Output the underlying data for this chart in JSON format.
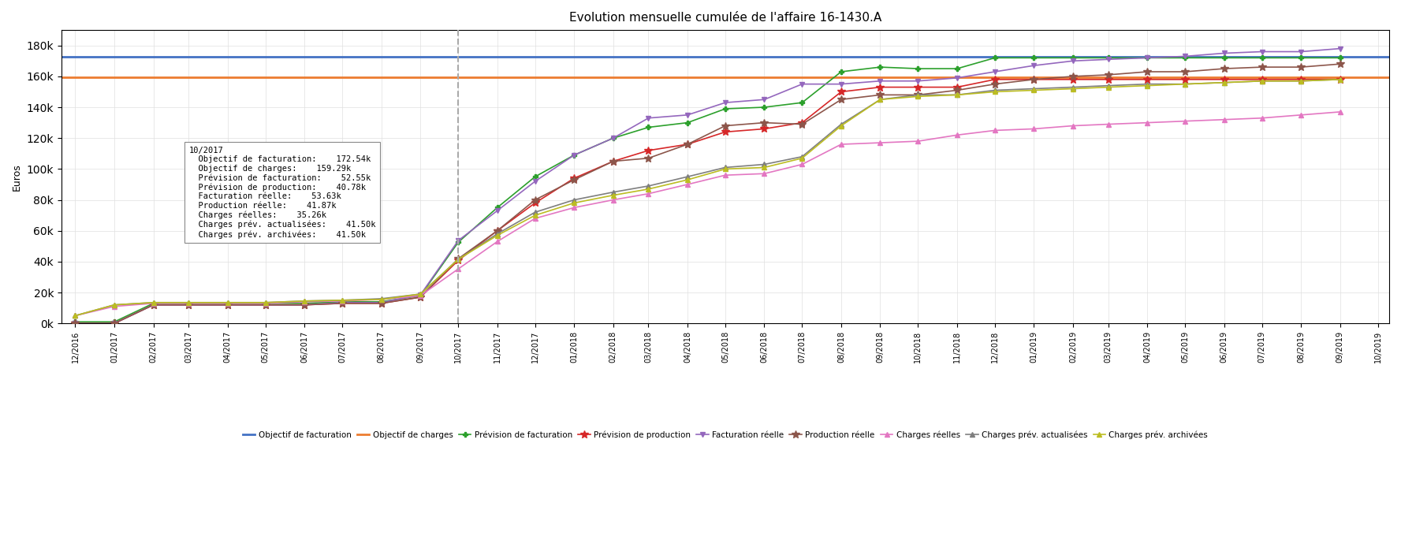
{
  "title": "Evolution mensuelle cumulée de l'affaire 16-1430.A",
  "ylabel": "Euros",
  "objectif_facturation": 172540,
  "objectif_charges": 159290,
  "vline_x": "10/2017",
  "tooltip_date": "10/2017",
  "tooltip_items": [
    {
      "label": "Objectif de facturation:",
      "value": "172.54k",
      "color": "#4472c4",
      "marker": "square"
    },
    {
      "label": "Objectif de charges:",
      "value": "159.29k",
      "color": "#ed7d31",
      "marker": "square"
    },
    {
      "label": "Prévision de facturation:",
      "value": "52.55k",
      "color": "#2ca02c",
      "marker": "plus"
    },
    {
      "label": "Prévision de production:",
      "value": "40.78k",
      "color": "#d62728",
      "marker": "star"
    },
    {
      "label": "Facturation réelle:",
      "value": "53.63k",
      "color": "#9467bd",
      "marker": "tri"
    },
    {
      "label": "Production réelle:",
      "value": "41.87k",
      "color": "#8c564b",
      "marker": "star"
    },
    {
      "label": "Charges réelles:",
      "value": "35.26k",
      "color": "#e377c2",
      "marker": "tri"
    },
    {
      "label": "Charges prév. actualisées:",
      "value": "41.50k",
      "color": "#7f7f7f",
      "marker": "tri"
    },
    {
      "label": "Charges prév. archivées:",
      "value": "41.50k",
      "color": "#bcbd22",
      "marker": "tri"
    }
  ],
  "series": {
    "prev_facturation": {
      "color": "#2ca02c",
      "marker": "P",
      "ms": 5,
      "label": "Prévision de facturation",
      "dates": [
        "12/2016",
        "01/2017",
        "02/2017",
        "03/2017",
        "04/2017",
        "05/2017",
        "06/2017",
        "07/2017",
        "08/2017",
        "09/2017",
        "10/2017",
        "11/2017",
        "12/2017",
        "01/2018",
        "02/2018",
        "03/2018",
        "04/2018",
        "05/2018",
        "06/2018",
        "07/2018",
        "08/2018",
        "09/2018",
        "10/2018",
        "11/2018",
        "12/2018",
        "01/2019",
        "02/2019",
        "03/2019",
        "04/2019",
        "05/2019",
        "06/2019",
        "07/2019",
        "08/2019",
        "09/2019"
      ],
      "values": [
        1000,
        1000,
        13000,
        13000,
        13000,
        13000,
        13000,
        14000,
        14000,
        18000,
        52550,
        75000,
        95000,
        109000,
        120000,
        127000,
        130000,
        139000,
        140000,
        143000,
        163000,
        166000,
        165000,
        165000,
        172000,
        172000,
        172000,
        172000,
        172000,
        172000,
        172000,
        172000,
        172000,
        172000
      ]
    },
    "prev_production": {
      "color": "#d62728",
      "marker": "*",
      "ms": 7,
      "label": "Prévision de production",
      "dates": [
        "12/2016",
        "01/2017",
        "02/2017",
        "03/2017",
        "04/2017",
        "05/2017",
        "06/2017",
        "07/2017",
        "08/2017",
        "09/2017",
        "10/2017",
        "11/2017",
        "12/2017",
        "01/2018",
        "02/2018",
        "03/2018",
        "04/2018",
        "05/2018",
        "06/2018",
        "07/2018",
        "08/2018",
        "09/2018",
        "10/2018",
        "11/2018",
        "12/2018",
        "01/2019",
        "02/2019",
        "03/2019",
        "04/2019",
        "05/2019",
        "06/2019",
        "07/2019",
        "08/2019",
        "09/2019"
      ],
      "values": [
        0,
        0,
        12000,
        12000,
        12000,
        12000,
        12000,
        13000,
        13000,
        17000,
        40780,
        60000,
        78000,
        94000,
        105000,
        112000,
        116000,
        124000,
        126000,
        130000,
        150000,
        153000,
        153000,
        153000,
        158000,
        158000,
        158000,
        158000,
        158000,
        158000,
        158000,
        158000,
        158000,
        158000
      ]
    },
    "facturation_reelle": {
      "color": "#9467bd",
      "marker": "v",
      "ms": 5,
      "label": "Facturation réelle",
      "dates": [
        "12/2016",
        "01/2017",
        "02/2017",
        "03/2017",
        "04/2017",
        "05/2017",
        "06/2017",
        "07/2017",
        "08/2017",
        "09/2017",
        "10/2017",
        "11/2017",
        "12/2017",
        "01/2018",
        "02/2018",
        "03/2018",
        "04/2018",
        "05/2018",
        "06/2018",
        "07/2018",
        "08/2018",
        "09/2018",
        "10/2018",
        "11/2018",
        "12/2018",
        "01/2019",
        "02/2019",
        "03/2019",
        "04/2019",
        "05/2019",
        "06/2019",
        "07/2019",
        "08/2019",
        "09/2019"
      ],
      "values": [
        0,
        0,
        12000,
        12000,
        12000,
        12000,
        12000,
        13500,
        13500,
        18500,
        53630,
        73000,
        92000,
        109000,
        120000,
        133000,
        135000,
        143000,
        145000,
        155000,
        155000,
        157000,
        157000,
        159000,
        163000,
        167000,
        170000,
        171000,
        172000,
        173000,
        175000,
        176000,
        176000,
        178000
      ]
    },
    "production_reelle": {
      "color": "#8c564b",
      "marker": "*",
      "ms": 7,
      "label": "Production réelle",
      "dates": [
        "12/2016",
        "01/2017",
        "02/2017",
        "03/2017",
        "04/2017",
        "05/2017",
        "06/2017",
        "07/2017",
        "08/2017",
        "09/2017",
        "10/2017",
        "11/2017",
        "12/2017",
        "01/2018",
        "02/2018",
        "03/2018",
        "04/2018",
        "05/2018",
        "06/2018",
        "07/2018",
        "08/2018",
        "09/2018",
        "10/2018",
        "11/2018",
        "12/2018",
        "01/2019",
        "02/2019",
        "03/2019",
        "04/2019",
        "05/2019",
        "06/2019",
        "07/2019",
        "08/2019",
        "09/2019"
      ],
      "values": [
        0,
        0,
        12000,
        12000,
        12000,
        12000,
        12000,
        13000,
        13000,
        17000,
        41870,
        60000,
        80000,
        93000,
        105000,
        107000,
        116000,
        128000,
        130000,
        129000,
        145000,
        148000,
        148000,
        151000,
        155000,
        158000,
        160000,
        161000,
        163000,
        163000,
        165000,
        166000,
        166000,
        168000
      ]
    },
    "charges_reelles": {
      "color": "#e377c2",
      "marker": "^",
      "ms": 5,
      "label": "Charges réelles",
      "dates": [
        "12/2016",
        "01/2017",
        "02/2017",
        "03/2017",
        "04/2017",
        "05/2017",
        "06/2017",
        "07/2017",
        "08/2017",
        "09/2017",
        "10/2017",
        "11/2017",
        "12/2017",
        "01/2018",
        "02/2018",
        "03/2018",
        "04/2018",
        "05/2018",
        "06/2018",
        "07/2018",
        "08/2018",
        "09/2018",
        "10/2018",
        "11/2018",
        "12/2018",
        "01/2019",
        "02/2019",
        "03/2019",
        "04/2019",
        "05/2019",
        "06/2019",
        "07/2019",
        "08/2019",
        "09/2019"
      ],
      "values": [
        5000,
        11000,
        13000,
        13000,
        13000,
        13000,
        14000,
        14500,
        15500,
        18000,
        35260,
        53000,
        68000,
        75000,
        80000,
        84000,
        90000,
        96000,
        97000,
        103000,
        116000,
        117000,
        118000,
        122000,
        125000,
        126000,
        128000,
        129000,
        130000,
        131000,
        132000,
        133000,
        135000,
        137000
      ]
    },
    "charges_prev_act": {
      "color": "#7f7f7f",
      "marker": "^",
      "ms": 5,
      "label": "Charges prév. actualisées",
      "dates": [
        "12/2016",
        "01/2017",
        "02/2017",
        "03/2017",
        "04/2017",
        "05/2017",
        "06/2017",
        "07/2017",
        "08/2017",
        "09/2017",
        "10/2017",
        "11/2017",
        "12/2017",
        "01/2018",
        "02/2018",
        "03/2018",
        "04/2018",
        "05/2018",
        "06/2018",
        "07/2018",
        "08/2018",
        "09/2018",
        "10/2018",
        "11/2018",
        "12/2018",
        "01/2019",
        "02/2019",
        "03/2019",
        "04/2019",
        "05/2019",
        "06/2019",
        "07/2019",
        "08/2019",
        "09/2019"
      ],
      "values": [
        5000,
        12000,
        13500,
        13500,
        13500,
        13500,
        14500,
        15000,
        16000,
        19000,
        41500,
        58000,
        72000,
        80000,
        85000,
        89000,
        95000,
        101000,
        103000,
        108000,
        129000,
        145000,
        148000,
        148000,
        151000,
        152000,
        153000,
        154000,
        155000,
        155000,
        156000,
        157000,
        157000,
        158000
      ]
    },
    "charges_prev_arch": {
      "color": "#bcbd22",
      "marker": "^",
      "ms": 5,
      "label": "Charges prév. archivées",
      "dates": [
        "12/2016",
        "01/2017",
        "02/2017",
        "03/2017",
        "04/2017",
        "05/2017",
        "06/2017",
        "07/2017",
        "08/2017",
        "09/2017",
        "10/2017",
        "11/2017",
        "12/2017",
        "01/2018",
        "02/2018",
        "03/2018",
        "04/2018",
        "05/2018",
        "06/2018",
        "07/2018",
        "08/2018",
        "09/2018",
        "10/2018",
        "11/2018",
        "12/2018",
        "01/2019",
        "02/2019",
        "03/2019",
        "04/2019",
        "05/2019",
        "06/2019",
        "07/2019",
        "08/2019",
        "09/2019"
      ],
      "values": [
        5000,
        12000,
        13500,
        13500,
        13500,
        13500,
        14500,
        15000,
        15500,
        19000,
        41500,
        57000,
        70000,
        78000,
        83000,
        87000,
        93000,
        100000,
        101000,
        107000,
        128000,
        145000,
        147000,
        148000,
        150000,
        151000,
        152000,
        153000,
        154000,
        155000,
        156000,
        157000,
        157000,
        158000
      ]
    }
  },
  "ylim": [
    0,
    190000
  ],
  "yticks": [
    0,
    20000,
    40000,
    60000,
    80000,
    100000,
    120000,
    140000,
    160000,
    180000
  ],
  "bg_color": "#ffffff",
  "grid_color": "#e0e0e0",
  "xlim_start": "12/2016",
  "xlim_end": "09/2019"
}
